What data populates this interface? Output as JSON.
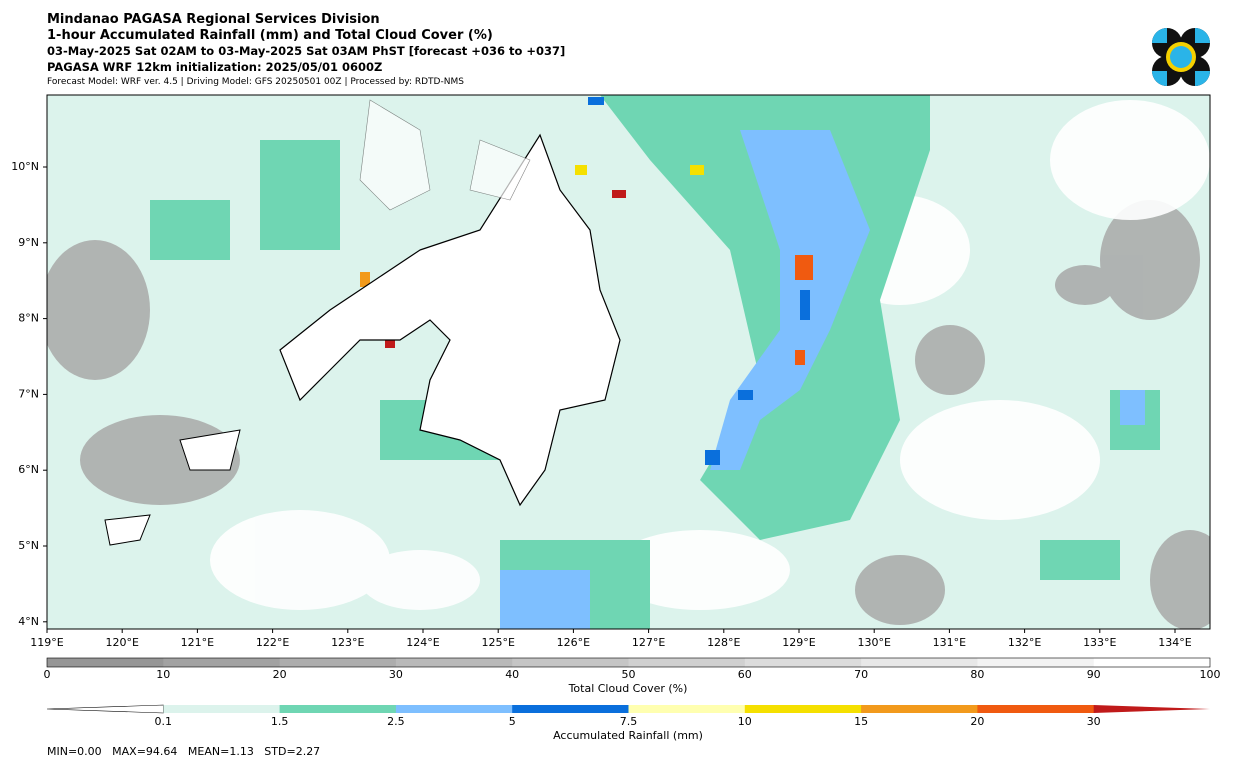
{
  "header": {
    "lines": [
      "Mindanao PAGASA Regional Services Division",
      "1-hour Accumulated Rainfall (mm) and Total Cloud Cover (%)",
      "03-May-2025 Sat 02AM to 03-May-2025 Sat 03AM PhST [forecast +036 to +037]",
      "PAGASA WRF 12km initialization: 2025/05/01 0600Z",
      "Forecast Model: WRF ver. 4.5 | Driving Model: GFS 20250501 00Z | Processed by: RDTD-NMS"
    ]
  },
  "map": {
    "lon_labels": [
      "119°E",
      "120°E",
      "121°E",
      "122°E",
      "123°E",
      "124°E",
      "125°E",
      "126°E",
      "127°E",
      "128°E",
      "129°E",
      "130°E",
      "131°E",
      "132°E",
      "133°E",
      "134°E"
    ],
    "lat_labels": [
      "10°N",
      "9°N",
      "8°N",
      "7°N",
      "6°N",
      "5°N",
      "4°N"
    ]
  },
  "cloud_colorbar": {
    "label": "Total Cloud Cover (%)",
    "ticks": [
      "0",
      "10",
      "20",
      "30",
      "40",
      "50",
      "60",
      "70",
      "80",
      "90",
      "100"
    ]
  },
  "rain_colorbar": {
    "label": "Accumulated Rainfall (mm)",
    "ticks": [
      "0.1",
      "1.5",
      "2.5",
      "5",
      "7.5",
      "10",
      "15",
      "20",
      "30"
    ]
  },
  "stats": "MIN=0.00   MAX=94.64   MEAN=1.13   STD=2.27"
}
